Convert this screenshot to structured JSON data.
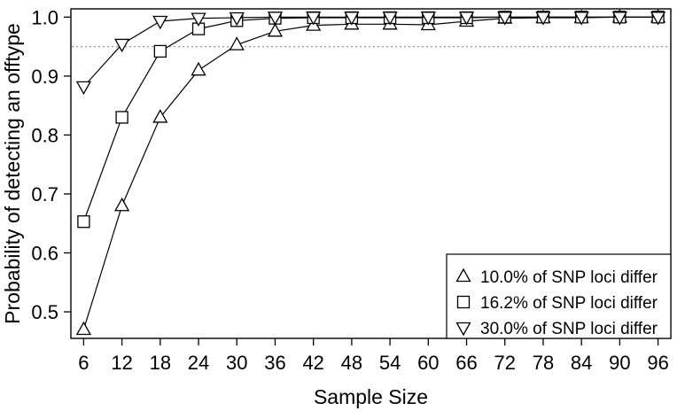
{
  "chart_data": {
    "type": "scatter",
    "title": "",
    "xlabel": "Sample Size",
    "ylabel": "Probability of detecting an offtype",
    "xlim": [
      4,
      98
    ],
    "ylim": [
      0.455,
      1.014
    ],
    "x": [
      6,
      12,
      18,
      24,
      30,
      36,
      42,
      48,
      54,
      60,
      66,
      72,
      78,
      84,
      90,
      96
    ],
    "xticks": [
      6,
      12,
      18,
      24,
      30,
      36,
      42,
      48,
      54,
      60,
      66,
      72,
      78,
      84,
      90,
      96
    ],
    "yticks": [
      0.5,
      0.6,
      0.7,
      0.8,
      0.9,
      1.0
    ],
    "ytick_labels": [
      "0.5",
      "0.6",
      "0.7",
      "0.8",
      "0.9",
      "1.0"
    ],
    "reference_line": {
      "y": 0.95,
      "style": "dotted",
      "color": "#999999"
    },
    "grid": false,
    "legend_position": "bottom-right",
    "series": [
      {
        "name": "10.0% of SNP loci differ",
        "marker": "triangle-up",
        "values": [
          0.47,
          0.68,
          0.83,
          0.91,
          0.953,
          0.976,
          0.986,
          0.988,
          0.988,
          0.987,
          0.993,
          0.998,
          0.999,
          0.999,
          1.0,
          1.0
        ]
      },
      {
        "name": "16.2% of SNP loci differ",
        "marker": "square",
        "values": [
          0.653,
          0.83,
          0.942,
          0.98,
          0.994,
          0.998,
          0.999,
          0.999,
          0.999,
          0.999,
          0.999,
          1.0,
          1.0,
          1.0,
          1.0,
          1.0
        ]
      },
      {
        "name": "30.0% of SNP loci differ",
        "marker": "triangle-down",
        "values": [
          0.882,
          0.954,
          0.993,
          0.998,
          0.999,
          1.0,
          1.0,
          1.0,
          1.0,
          1.0,
          1.0,
          1.0,
          1.0,
          1.0,
          1.0,
          1.0
        ]
      }
    ]
  }
}
